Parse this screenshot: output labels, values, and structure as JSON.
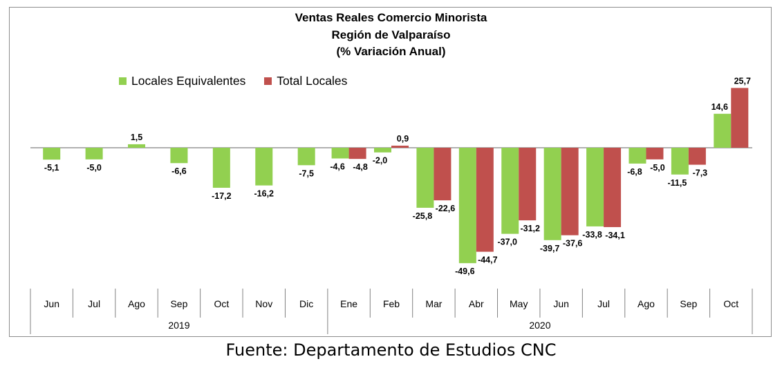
{
  "chart_data": {
    "type": "bar",
    "title": "Ventas Reales Comercio Minorista",
    "subtitle": "Región de Valparaíso",
    "subtitle2": "(% Variación Anual)",
    "categories": [
      "Jun",
      "Jul",
      "Ago",
      "Sep",
      "Oct",
      "Nov",
      "Dic",
      "Ene",
      "Feb",
      "Mar",
      "Abr",
      "May",
      "Jun",
      "Jul",
      "Ago",
      "Sep",
      "Oct"
    ],
    "year_groups": [
      {
        "label": "2019",
        "start": 0,
        "count": 7
      },
      {
        "label": "2020",
        "start": 7,
        "count": 10
      }
    ],
    "series": [
      {
        "name": "Locales Equivalentes",
        "color": "#92d050",
        "values": [
          -5.1,
          -5.0,
          1.5,
          -6.6,
          -17.2,
          -16.2,
          -7.5,
          -4.6,
          -2.0,
          -25.8,
          -49.6,
          -37.0,
          -39.7,
          -33.8,
          -6.8,
          -11.5,
          14.6
        ],
        "labels": [
          "-5,1",
          "-5,0",
          "1,5",
          "-6,6",
          "-17,2",
          "-16,2",
          "-7,5",
          "-4,6",
          "-2,0",
          "-25,8",
          "-49,6",
          "-37,0",
          "-39,7",
          "-33,8",
          "-6,8",
          "-11,5",
          "14,6"
        ]
      },
      {
        "name": "Total Locales",
        "color": "#c0504d",
        "values": [
          null,
          null,
          null,
          null,
          null,
          null,
          null,
          -4.8,
          0.9,
          -22.6,
          -44.7,
          -31.2,
          -37.6,
          -34.1,
          -5.0,
          -7.3,
          25.7
        ],
        "labels": [
          "",
          "",
          "",
          "",
          "",
          "",
          "",
          "-4,8",
          "0,9",
          "-22,6",
          "-44,7",
          "-31,2",
          "-37,6",
          "-34,1",
          "-5,0",
          "-7,3",
          "25,7"
        ]
      }
    ],
    "legend_position": "top-left",
    "grid": false
  },
  "footer": "Fuente: Departamento de Estudios CNC"
}
